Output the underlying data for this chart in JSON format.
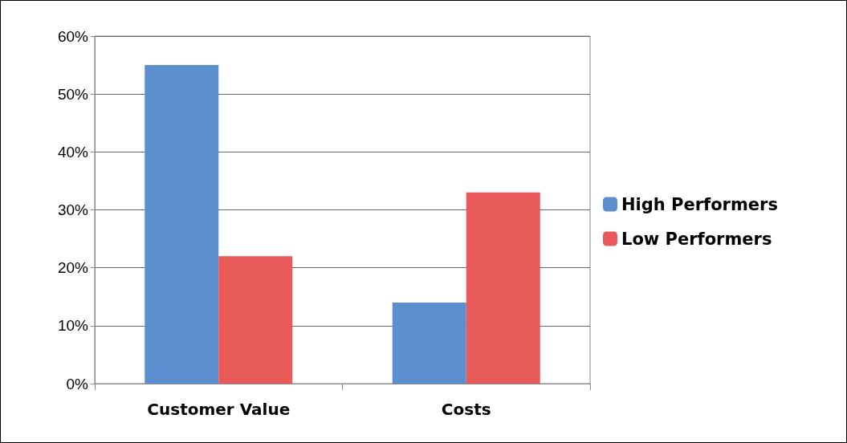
{
  "chart_data": {
    "type": "bar",
    "categories": [
      "Customer Value",
      "Costs"
    ],
    "series": [
      {
        "name": "High Performers",
        "color": "#5b8fd0",
        "values": [
          55,
          14
        ]
      },
      {
        "name": "Low Performers",
        "color": "#e8595a",
        "values": [
          22,
          33
        ]
      }
    ],
    "ylim": [
      0,
      60
    ],
    "yticks": [
      {
        "value": 0,
        "label": "0%"
      },
      {
        "value": 10,
        "label": "10%"
      },
      {
        "value": 20,
        "label": "20%"
      },
      {
        "value": 30,
        "label": "30%"
      },
      {
        "value": 40,
        "label": "40%"
      },
      {
        "value": 50,
        "label": "50%"
      },
      {
        "value": 60,
        "label": "60%"
      }
    ],
    "grid": "y",
    "legend": "right"
  }
}
